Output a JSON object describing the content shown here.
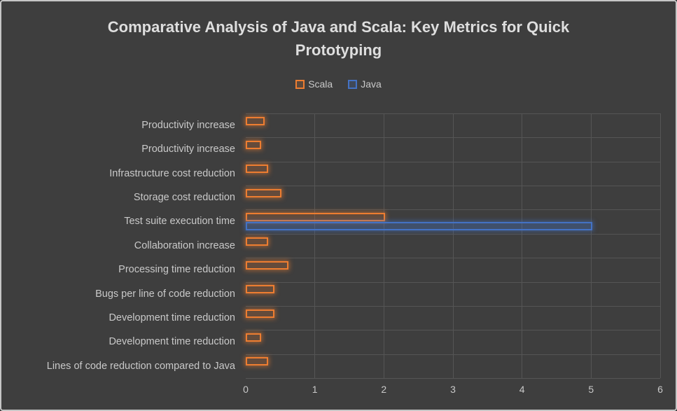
{
  "chart_data": {
    "type": "bar",
    "orientation": "horizontal",
    "title": "Comparative Analysis of Java and Scala: Key Metrics for Quick Prototyping",
    "categories": [
      "Productivity increase",
      "Productivity increase",
      "Infrastructure cost reduction",
      "Storage cost reduction",
      "Test suite execution time",
      "Collaboration increase",
      "Processing time reduction",
      "Bugs per line of code reduction",
      "Development time reduction",
      "Development time reduction",
      "Lines of code reduction compared to Java"
    ],
    "series": [
      {
        "name": "Scala",
        "color": "#ED7D31",
        "values": [
          0.25,
          0.2,
          0.3,
          0.5,
          2,
          0.3,
          0.6,
          0.4,
          0.4,
          0.2,
          0.3
        ]
      },
      {
        "name": "Java",
        "color": "#4472C4",
        "values": [
          0,
          0,
          0,
          0,
          5,
          0,
          0,
          0,
          0,
          0,
          0
        ]
      }
    ],
    "xlabel": "",
    "ylabel": "",
    "xlim": [
      0,
      6
    ],
    "xticks": [
      0,
      1,
      2,
      3,
      4,
      5,
      6
    ],
    "grid": true,
    "legend_position": "top"
  },
  "colors": {
    "background": "#3e3e3e",
    "frame_border": "#c6c6c6",
    "gridline": "#555555",
    "title_text": "#dedede",
    "label_text": "#c9c9c9"
  }
}
